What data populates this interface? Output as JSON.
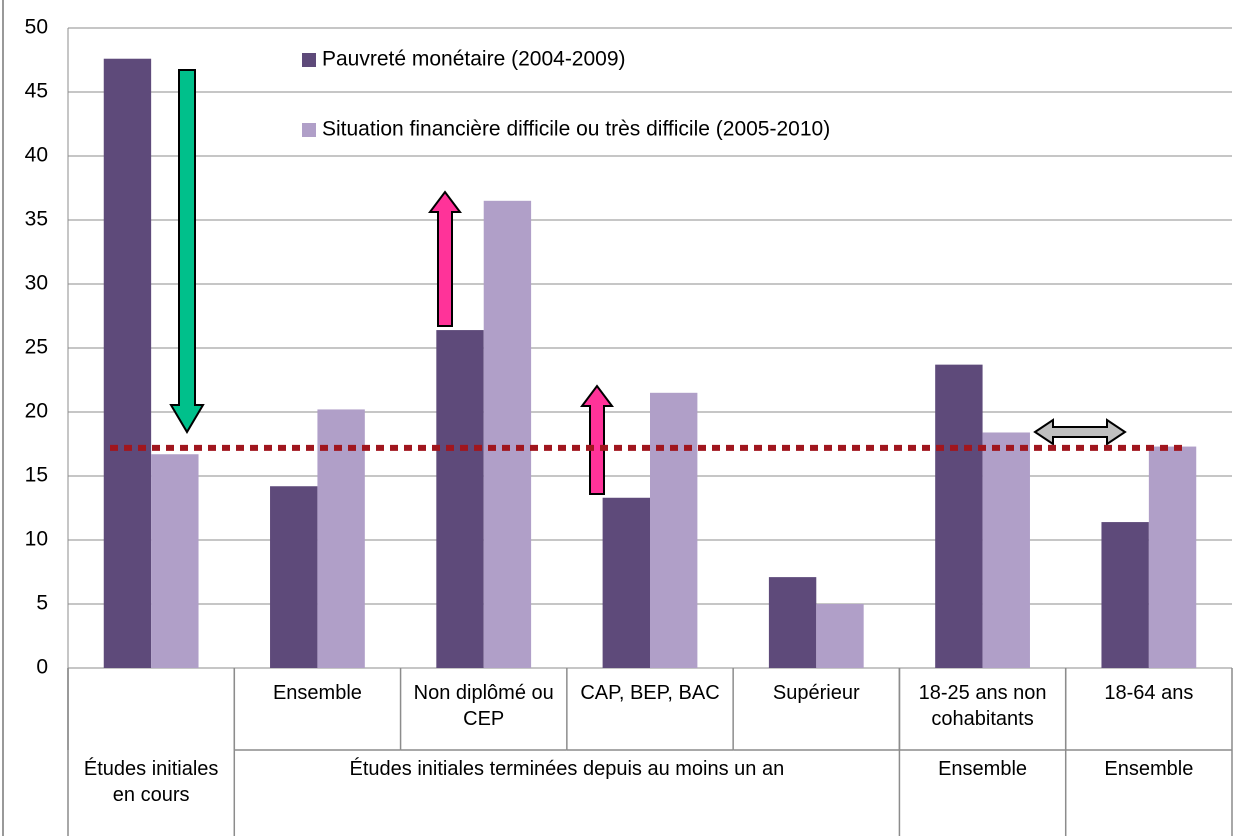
{
  "chart_data": {
    "type": "bar",
    "categories": [
      null,
      "Ensemble",
      "Non diplômé ou CEP",
      "CAP, BEP, BAC",
      "Supérieur",
      "18-25 ans non cohabitants",
      "18-64 ans"
    ],
    "category_groups": [
      {
        "label": "Études initiales en cours",
        "size": 1
      },
      {
        "label": "Études initiales terminées depuis au moins un an",
        "size": 4
      },
      {
        "label": "Ensemble",
        "size": 1
      },
      {
        "label": "Ensemble",
        "size": 1
      }
    ],
    "series": [
      {
        "name": "Pauvreté monétaire (2004-2009)",
        "color": "#5e4a7a",
        "values": [
          47.6,
          14.2,
          26.4,
          13.3,
          7.1,
          23.7,
          11.4
        ]
      },
      {
        "name": "Situation financière difficile ou très difficile (2005-2010)",
        "color": "#b09fc8",
        "values": [
          16.7,
          20.2,
          36.5,
          21.5,
          5.0,
          18.4,
          17.3
        ]
      }
    ],
    "reference_line": {
      "value": 17.2,
      "color": "#a0161e"
    },
    "ylim": [
      0,
      50
    ],
    "yticks": [
      0,
      5,
      10,
      15,
      20,
      25,
      30,
      35,
      40,
      45,
      50
    ],
    "grid": true
  }
}
